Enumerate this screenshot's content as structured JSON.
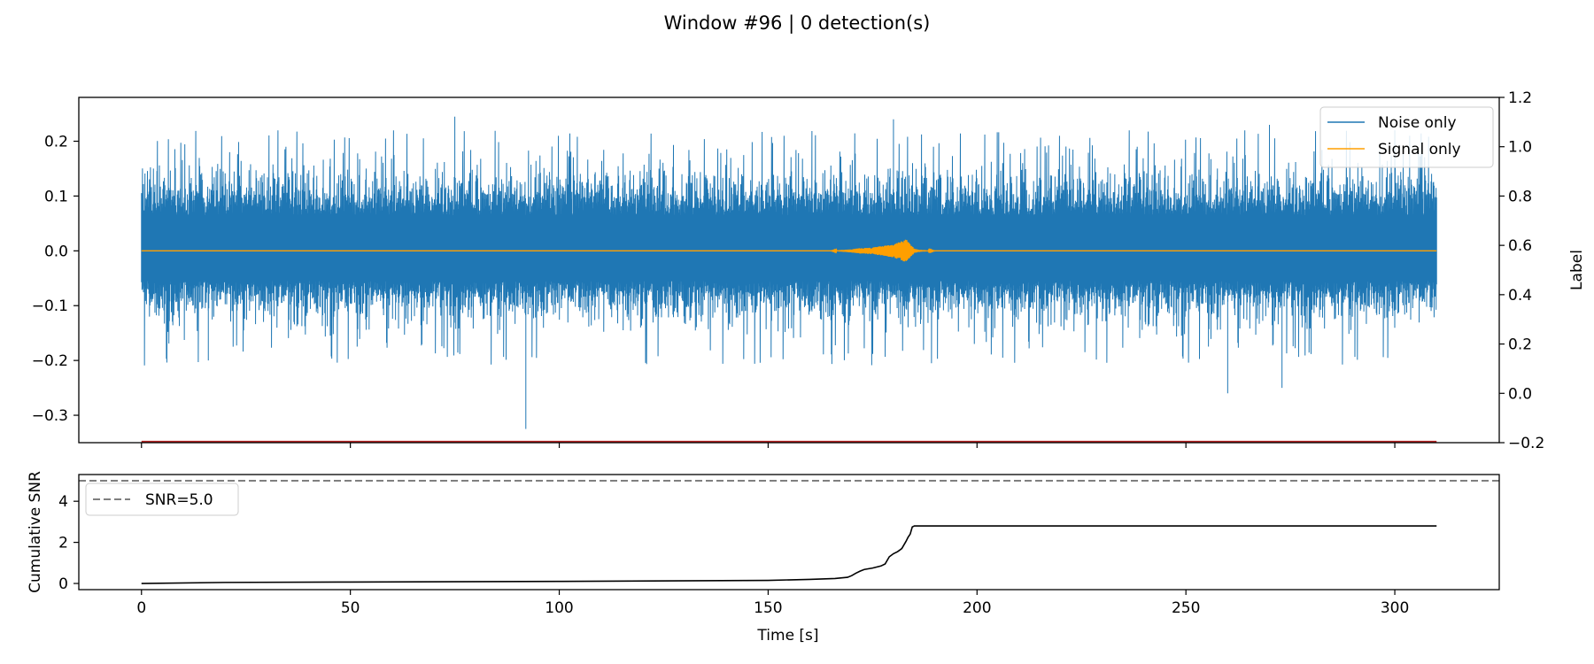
{
  "figure_title": "Window #96 | 0 detection(s)",
  "colors": {
    "noise": "#1f77b4",
    "signal": "#ff9f00",
    "label_line": "#b22222",
    "snr_curve": "#000000",
    "threshold": "#7f7f7f"
  },
  "chart_data": [
    {
      "type": "line",
      "title": "",
      "xlabel": "",
      "ylabel": "",
      "y2label": "Label",
      "xlim": [
        -15,
        325
      ],
      "ylim": [
        -0.35,
        0.28
      ],
      "y2lim": [
        -0.2,
        1.2
      ],
      "xticks": [
        0,
        50,
        100,
        150,
        200,
        250,
        300
      ],
      "yticks": [
        -0.3,
        -0.2,
        -0.1,
        0.0,
        0.1,
        0.2
      ],
      "ytick_labels": [
        "−0.3",
        "−0.2",
        "−0.1",
        "0.0",
        "0.1",
        "0.2"
      ],
      "y2ticks": [
        -0.2,
        0.0,
        0.2,
        0.4,
        0.6,
        0.8,
        1.0,
        1.2
      ],
      "y2tick_labels": [
        "−0.2",
        "0.0",
        "0.2",
        "0.4",
        "0.6",
        "0.8",
        "1.0",
        "1.2"
      ],
      "legend": {
        "position": "top-right",
        "entries": [
          "Noise only",
          "Signal only"
        ]
      },
      "series": [
        {
          "name": "Noise only",
          "x_range": [
            0,
            310
          ],
          "typical_envelope": [
            -0.12,
            0.14
          ],
          "peaks": [
            [
              92,
              -0.325
            ],
            [
              16,
              -0.2
            ],
            [
              75,
              0.245
            ],
            [
              180,
              0.24
            ],
            [
              270,
              0.23
            ],
            [
              300,
              0.22
            ],
            [
              260,
              -0.26
            ],
            [
              273,
              -0.25
            ]
          ]
        },
        {
          "name": "Signal only",
          "x_range": [
            0,
            310
          ],
          "x": [
            0,
            165,
            170,
            172,
            175,
            178,
            180,
            182,
            183,
            184,
            185,
            186,
            190,
            310
          ],
          "y_amplitude": [
            0,
            0,
            0.003,
            0.005,
            0.006,
            0.01,
            0.012,
            0.018,
            0.022,
            0.012,
            0.004,
            0.002,
            0,
            0
          ]
        },
        {
          "name": "",
          "axis": "y2",
          "x": [
            0,
            310
          ],
          "y": [
            -0.2,
            -0.2
          ]
        }
      ]
    },
    {
      "type": "line",
      "title": "",
      "xlabel": "Time [s]",
      "ylabel": "Cumulative SNR",
      "xlim": [
        -15,
        325
      ],
      "ylim": [
        -0.3,
        5.3
      ],
      "xticks": [
        0,
        50,
        100,
        150,
        200,
        250,
        300
      ],
      "yticks": [
        0,
        2,
        4
      ],
      "legend": {
        "position": "top-left",
        "entries": [
          "SNR=5.0"
        ]
      },
      "hline": {
        "y": 5.0,
        "label": "SNR=5.0",
        "style": "dashed"
      },
      "series": [
        {
          "name": "",
          "x": [
            0,
            20,
            50,
            100,
            150,
            160,
            166,
            169,
            170,
            171,
            172,
            173,
            175,
            177,
            178,
            179,
            180,
            181,
            182,
            183,
            183.5,
            184,
            184.5,
            185,
            190,
            250,
            310
          ],
          "y": [
            0.0,
            0.05,
            0.07,
            0.1,
            0.15,
            0.2,
            0.24,
            0.3,
            0.38,
            0.5,
            0.6,
            0.68,
            0.75,
            0.85,
            0.95,
            1.3,
            1.45,
            1.55,
            1.7,
            2.05,
            2.25,
            2.4,
            2.75,
            2.8,
            2.8,
            2.8,
            2.8
          ]
        }
      ]
    }
  ]
}
